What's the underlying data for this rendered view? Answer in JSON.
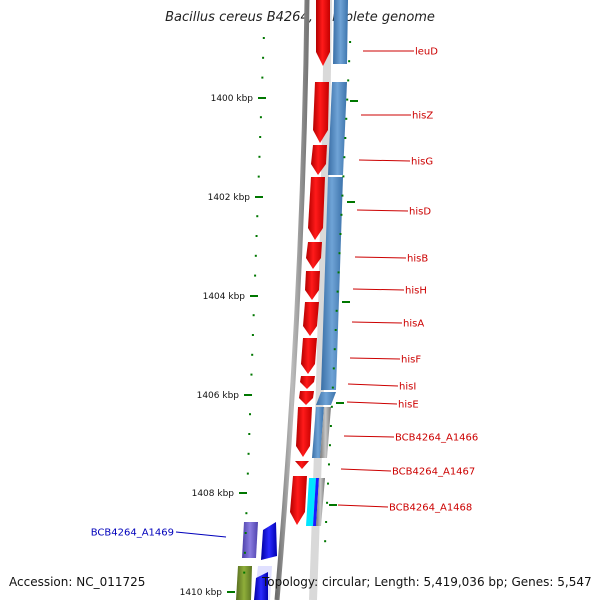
{
  "title": "Bacillus cereus B4264, complete genome",
  "footer": {
    "accession": "Accession: NC_011725",
    "topology": "Topology: circular; Length: 5,419,036 bp; Genes: 5,547"
  },
  "scale": {
    "unit": "kbp",
    "ticks": [
      {
        "value": 1400,
        "label": "1400 kbp"
      },
      {
        "value": 1402,
        "label": "1402 kbp"
      },
      {
        "value": 1404,
        "label": "1404 kbp"
      },
      {
        "value": 1406,
        "label": "1406 kbp"
      },
      {
        "value": 1408,
        "label": "1408 kbp"
      },
      {
        "value": 1410,
        "label": "1410 kbp"
      }
    ]
  },
  "genes": [
    {
      "name": "leuD",
      "color": "#cc0000"
    },
    {
      "name": "hisZ",
      "color": "#cc0000"
    },
    {
      "name": "hisG",
      "color": "#cc0000"
    },
    {
      "name": "hisD",
      "color": "#cc0000"
    },
    {
      "name": "hisB",
      "color": "#cc0000"
    },
    {
      "name": "hisH",
      "color": "#cc0000"
    },
    {
      "name": "hisA",
      "color": "#cc0000"
    },
    {
      "name": "hisF",
      "color": "#cc0000"
    },
    {
      "name": "hisI",
      "color": "#cc0000"
    },
    {
      "name": "hisE",
      "color": "#cc0000"
    },
    {
      "name": "BCB4264_A1466",
      "color": "#cc0000"
    },
    {
      "name": "BCB4264_A1467",
      "color": "#cc0000"
    },
    {
      "name": "BCB4264_A1468",
      "color": "#cc0000"
    },
    {
      "name": "BCB4264_A1469",
      "color": "#0000bb"
    }
  ],
  "colors": {
    "forward_gene": "#ff0000",
    "reverse_gene": "#0000ff",
    "cog_band": "#4f86bd",
    "backbone": "#888888",
    "tick": "#007700",
    "green_gene": "#6b8e23",
    "violet_gene": "#6a5acd",
    "cyan_gene": "#00e5ff",
    "label_line_red": "#cc0000",
    "label_line_blue": "#0000bb"
  }
}
